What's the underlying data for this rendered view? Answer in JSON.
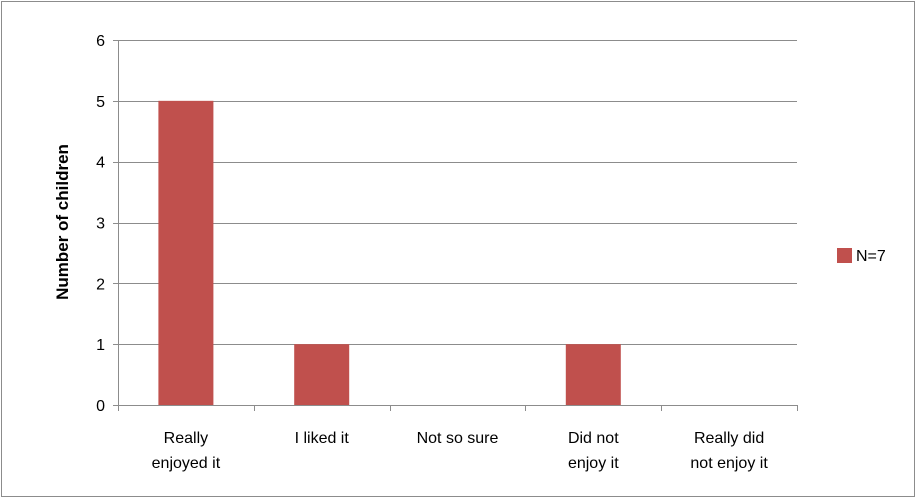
{
  "chart_data": {
    "type": "bar",
    "categories": [
      [
        "Really",
        "enjoyed it"
      ],
      [
        "I liked it"
      ],
      [
        "Not so sure"
      ],
      [
        "Did not",
        "enjoy it"
      ],
      [
        "Really did",
        "not enjoy it"
      ]
    ],
    "series": [
      {
        "name": "N=7",
        "values": [
          5,
          1,
          0,
          1,
          0
        ],
        "color": "#c0504d"
      }
    ],
    "ylabel": "Number of children",
    "xlabel": "",
    "ylim": [
      0,
      6
    ],
    "yticks": [
      0,
      1,
      2,
      3,
      4,
      5,
      6
    ],
    "grid": true,
    "legend_position": "right"
  }
}
